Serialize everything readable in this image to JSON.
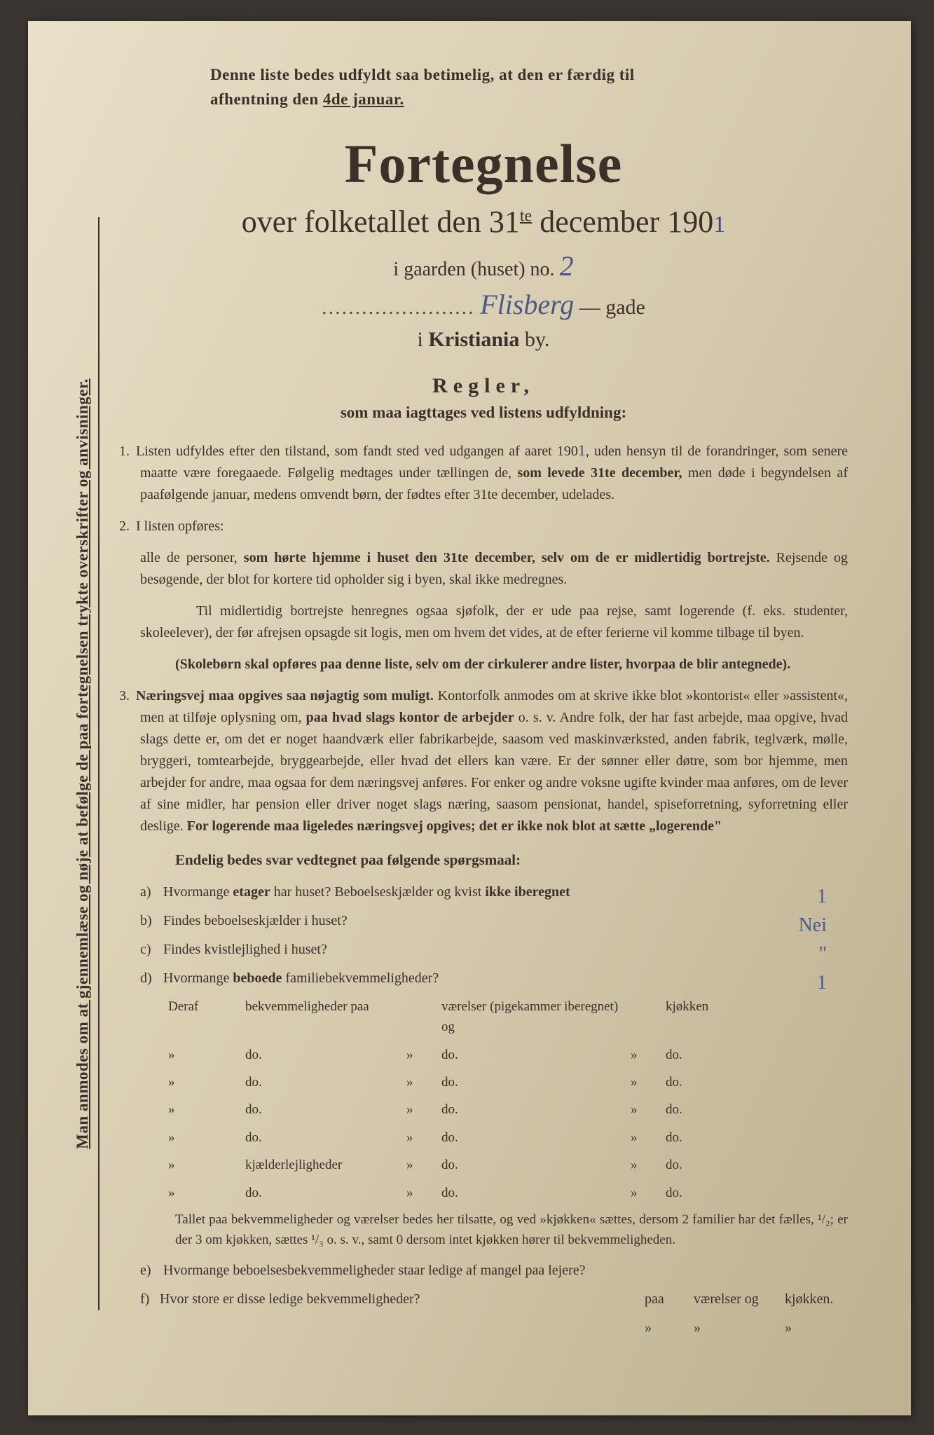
{
  "document": {
    "background_color": "#d8cdb2",
    "text_color": "#3a3128",
    "handwriting_color": "#4a5a85"
  },
  "header": {
    "notice_line1": "Denne liste bedes udfyldt saa betimelig, at den er færdig til",
    "notice_line2_pre": "afhentning den ",
    "notice_line2_underline": "4de januar.",
    "title": "Fortegnelse",
    "subtitle_pre": "over folketallet den 31",
    "subtitle_sup": "te",
    "subtitle_post": " december 190",
    "year_hand": "1",
    "gaarden_label": "i gaarden (huset) no.",
    "gaarden_value": "2",
    "street_value": "Flisberg",
    "street_suffix": "gade",
    "city_line_pre": "i ",
    "city_line_bold": "Kristiania",
    "city_line_post": " by."
  },
  "regler": {
    "heading": "Regler,",
    "subheading": "som maa iagttages ved listens udfyldning:"
  },
  "rules": {
    "r1_pre": "Listen udfyldes efter den tilstand, som fandt sted ved udgangen af aaret 190",
    "r1_hand": "1",
    "r1_post": ", uden hensyn til de forandringer, som senere maatte være foregaaede. Følgelig medtages under tællingen de, ",
    "r1_bold": "som levede 31te december,",
    "r1_end": " men døde i begyndelsen af paafølgende januar, medens omvendt børn, der fødtes efter 31te december, udelades.",
    "r2_intro": "I listen opføres:",
    "r2_p1_pre": "alle de personer, ",
    "r2_p1_bold": "som hørte hjemme i huset den 31te december, selv om de er midlertidig bortrejste.",
    "r2_p1_end": " Rejsende og besøgende, der blot for kortere tid opholder sig i byen, skal ikke medregnes.",
    "r2_p2": "Til midlertidig bortrejste henregnes ogsaa sjøfolk, der er ude paa rejse, samt logerende (f. eks. studenter, skoleelever), der før afrejsen opsagde sit logis, men om hvem det vides, at de efter ferierne vil komme tilbage til byen.",
    "r2_p3": "(Skolebørn skal opføres paa denne liste, selv om der cirkulerer andre lister, hvorpaa de blir antegnede).",
    "r3_bold1": "Næringsvej maa opgives saa nøjagtig som muligt.",
    "r3_mid1": " Kontorfolk anmodes om at skrive ikke blot »kontorist« eller »assistent«, men at tilføje oplysning om, ",
    "r3_bold2": "paa hvad slags kontor de arbejder",
    "r3_mid2": " o. s. v. Andre folk, der har fast arbejde, maa opgive, hvad slags dette er, om det er noget haandværk eller fabrikarbejde, saasom ved maskinværksted, anden fabrik, teglværk, mølle, bryggeri, tomtearbejde, bryggearbejde, eller hvad det ellers kan være. Er der sønner eller døtre, som bor hjemme, men arbejder for andre, maa ogsaa for dem næringsvej anføres. For enker og andre voksne ugifte kvinder maa anføres, om de lever af sine midler, har pension eller driver noget slags næring, saasom pensionat, handel, spiseforretning, syforretning eller deslige. ",
    "r3_bold3": "For logerende maa ligeledes næringsvej opgives; det er ikke nok blot at sætte „logerende\""
  },
  "questions": {
    "heading": "Endelig bedes svar vedtegnet paa følgende spørgsmaal:",
    "a": {
      "label": "a)",
      "text_pre": "Hvormange ",
      "text_b1": "etager",
      "text_mid": " har huset? Beboelseskjælder og kvist ",
      "text_b2": "ikke iberegnet",
      "answer": "1"
    },
    "b": {
      "label": "b)",
      "text": "Findes beboelseskjælder i huset?",
      "answer": "Nei"
    },
    "c": {
      "label": "c)",
      "text": "Findes kvistlejlighed i huset?",
      "answer": "\""
    },
    "d": {
      "label": "d)",
      "text_pre": "Hvormange ",
      "text_b": "beboede",
      "text_post": " familiebekvemmeligheder?",
      "answer": "1"
    }
  },
  "table": {
    "header": {
      "c1": "Deraf",
      "c2": "bekvemmeligheder paa",
      "c4": "værelser (pigekammer iberegnet) og",
      "c6": "kjøkken"
    },
    "rows": [
      {
        "c1": "»",
        "c2": "do.",
        "c3": "»",
        "c4": "do.",
        "c5": "»",
        "c6": "do."
      },
      {
        "c1": "»",
        "c2": "do.",
        "c3": "»",
        "c4": "do.",
        "c5": "»",
        "c6": "do."
      },
      {
        "c1": "»",
        "c2": "do.",
        "c3": "»",
        "c4": "do.",
        "c5": "»",
        "c6": "do."
      },
      {
        "c1": "»",
        "c2": "do.",
        "c3": "»",
        "c4": "do.",
        "c5": "»",
        "c6": "do."
      },
      {
        "c1": "»",
        "c2": "kjælderlejligheder",
        "c3": "»",
        "c4": "do.",
        "c5": "»",
        "c6": "do."
      },
      {
        "c1": "»",
        "c2": "do.",
        "c3": "»",
        "c4": "do.",
        "c5": "»",
        "c6": "do."
      }
    ],
    "footnote": "Tallet paa bekvemmeligheder og værelser bedes her tilsatte, og ved »kjøkken« sættes, dersom 2 familier har det fælles, ¹/₂; er der 3 om kjøkken, sættes ¹/₃ o. s. v., samt 0 dersom intet kjøkken hører til bekvemmeligheden."
  },
  "questions2": {
    "e": {
      "label": "e)",
      "text": "Hvormange beboelsesbekvemmeligheder staar ledige af mangel paa lejere?"
    },
    "f": {
      "label": "f)",
      "text": "Hvor store er disse ledige bekvemmeligheder?",
      "tail1": "paa",
      "tail2": "værelser og",
      "tail3": "kjøkken."
    }
  },
  "sidebar": {
    "text": "Man anmodes om at gjennemlæse og nøje at befølge de paa fortegnelsen trykte overskrifter og anvisninger."
  }
}
